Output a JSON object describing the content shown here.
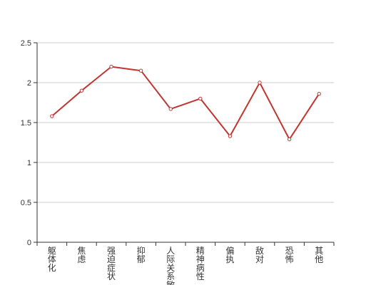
{
  "chart_data": {
    "type": "line",
    "title": "",
    "xlabel": "",
    "ylabel": "",
    "categories": [
      "躯体化",
      "焦虑",
      "强迫症状",
      "抑郁",
      "人际关系敏感",
      "精神病性",
      "偏执",
      "敌对",
      "恐怖",
      "其他"
    ],
    "series": [
      {
        "values": [
          1.58,
          1.9,
          2.2,
          2.15,
          1.67,
          1.8,
          1.33,
          2.0,
          1.29,
          1.86
        ]
      }
    ],
    "ylim": [
      0,
      2.5
    ],
    "yticks": [
      "0",
      "0.5",
      "1",
      "1.5",
      "2",
      "2.5"
    ],
    "grid": "horizontal",
    "line_color": "#c23531",
    "grid_color": "#cccccc",
    "axis_color": "#333333"
  }
}
